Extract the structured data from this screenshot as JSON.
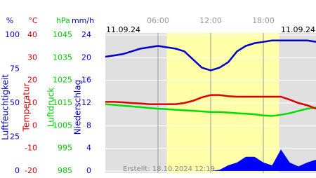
{
  "chart_data": {
    "type": "line",
    "date_left": "11.09.24",
    "date_right": "11.09.24",
    "footer": "Erstellt: 18.10.2024 12:19",
    "xlim": [
      0,
      24
    ],
    "xticks": [
      {
        "value": 6,
        "label": "06:00"
      },
      {
        "value": 12,
        "label": "12:00"
      },
      {
        "value": 18,
        "label": "18:00"
      }
    ],
    "daylight": [
      7,
      19.8
    ],
    "axes": [
      {
        "unit": "%",
        "label": "Luftfeuchtigkeit",
        "color": "#0000cc",
        "ylim": [
          0,
          100
        ],
        "yticks": [
          0,
          25,
          50,
          75,
          100
        ]
      },
      {
        "unit": "°C",
        "label": "Temperatur",
        "color": "#dd0000",
        "ylim": [
          -20,
          40
        ],
        "yticks": [
          -20,
          -10,
          0,
          10,
          20,
          30,
          40
        ]
      },
      {
        "unit": "hPa",
        "label": "Luftdruck",
        "color": "#00cc00",
        "ylim": [
          985,
          1045
        ],
        "yticks": [
          985,
          995,
          1005,
          1015,
          1025,
          1035,
          1045
        ]
      },
      {
        "unit": "mm/h",
        "label": "Niederschlag",
        "color": "#0000cc",
        "ylim": [
          0,
          24
        ],
        "yticks": [
          0,
          4,
          8,
          12,
          16,
          20,
          24
        ]
      }
    ],
    "x": [
      0,
      1,
      2,
      3,
      4,
      5,
      6,
      7,
      8,
      9,
      10,
      11,
      12,
      13,
      14,
      15,
      16,
      17,
      18,
      19,
      20,
      21,
      22,
      23,
      24
    ],
    "series": [
      {
        "axis": 3,
        "kind": "area",
        "color": "#0000ff",
        "values": [
          0,
          0,
          0,
          0,
          0,
          0,
          0,
          0,
          0,
          0,
          0,
          0,
          0,
          0.2,
          1,
          1.5,
          2.5,
          2.5,
          1.5,
          1,
          3.8,
          1.5,
          0.8,
          1.5,
          2
        ]
      },
      {
        "axis": 0,
        "kind": "line",
        "color": "#0000cc",
        "values": [
          84,
          85,
          86,
          88,
          90,
          91,
          92,
          91,
          90,
          88,
          82,
          76,
          74,
          76,
          80,
          88,
          92,
          94,
          95,
          96,
          96,
          96,
          96,
          96,
          95
        ]
      },
      {
        "axis": 2,
        "kind": "line",
        "color": "#00dd00",
        "values": [
          1014.5,
          1014.2,
          1013.8,
          1013.5,
          1013.2,
          1012.8,
          1012.5,
          1012.3,
          1012,
          1011.8,
          1011.6,
          1011.3,
          1011,
          1011,
          1010.8,
          1010.5,
          1010.3,
          1010,
          1009.5,
          1009.3,
          1009.8,
          1010.5,
          1011.5,
          1012.5,
          1013
        ]
      },
      {
        "axis": 1,
        "kind": "line",
        "color": "#dd0000",
        "values": [
          10.5,
          10.5,
          10.3,
          10,
          9.8,
          9.5,
          9.5,
          9.5,
          9.5,
          10,
          11,
          12.5,
          13.5,
          13.5,
          13,
          12.8,
          12.8,
          12.8,
          12.8,
          12.8,
          12.8,
          11.5,
          10,
          9,
          7.5
        ]
      }
    ]
  }
}
